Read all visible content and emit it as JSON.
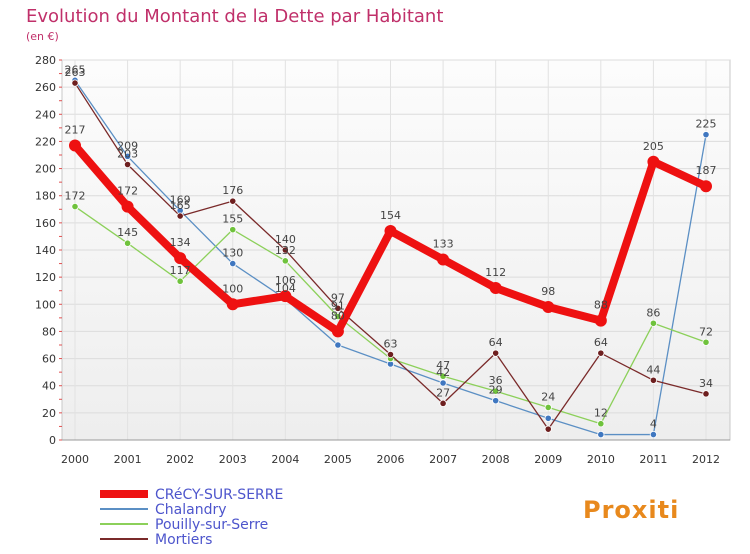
{
  "chart_data": {
    "type": "line",
    "title": "Evolution du Montant de la Dette par Habitant",
    "subtitle": "(en €)",
    "xlabel": "",
    "ylabel": "",
    "x": [
      2000,
      2001,
      2002,
      2003,
      2004,
      2005,
      2006,
      2007,
      2008,
      2009,
      2010,
      2011,
      2012
    ],
    "ylim": [
      0,
      280
    ],
    "yticks": [
      0,
      20,
      40,
      60,
      80,
      100,
      120,
      140,
      160,
      180,
      200,
      220,
      240,
      260,
      280
    ],
    "grid": true,
    "legend_position": "bottom-left",
    "series": [
      {
        "name": "Chalandry",
        "color": "#5b8fc4",
        "marker": "#3f77c0",
        "values": [
          265,
          209,
          169,
          130,
          104,
          70,
          56,
          42,
          29,
          16,
          4,
          4,
          225
        ],
        "labels": [
          "265",
          "209",
          "169",
          "130",
          "104",
          "",
          "",
          "42",
          "29",
          "",
          "",
          "4",
          "225"
        ]
      },
      {
        "name": "Pouilly-sur-Serre",
        "color": "#8cd05a",
        "marker": "#6fc23c",
        "values": [
          172,
          145,
          117,
          155,
          132,
          91,
          60,
          47,
          36,
          24,
          12,
          86,
          72
        ],
        "labels": [
          "172",
          "145",
          "117",
          "155",
          "132",
          "91",
          "",
          "47",
          "36",
          "24",
          "12",
          "86",
          "72"
        ]
      },
      {
        "name": "Mortiers",
        "color": "#7a2a2a",
        "marker": "#6e1f1f",
        "values": [
          263,
          203,
          165,
          176,
          140,
          97,
          63,
          27,
          64,
          8,
          64,
          44,
          34
        ],
        "labels": [
          "263",
          "203",
          "165",
          "176",
          "140",
          "97",
          "63",
          "27",
          "64",
          "",
          "64",
          "44",
          "34"
        ]
      },
      {
        "name": "CRéCY-SUR-SERRE",
        "color": "#ee1111",
        "marker": "#ee1111",
        "thick": true,
        "values": [
          217,
          172,
          134,
          100,
          106,
          80,
          154,
          133,
          112,
          98,
          88,
          205,
          187
        ],
        "labels": [
          "217",
          "172",
          "134",
          "100",
          "106",
          "80",
          "154",
          "133",
          "112",
          "98",
          "88",
          "205",
          "187"
        ]
      }
    ],
    "legend": [
      "CRéCY-SUR-SERRE",
      "Chalandry",
      "Pouilly-sur-Serre",
      "Mortiers"
    ]
  },
  "watermark": "Proxiti"
}
